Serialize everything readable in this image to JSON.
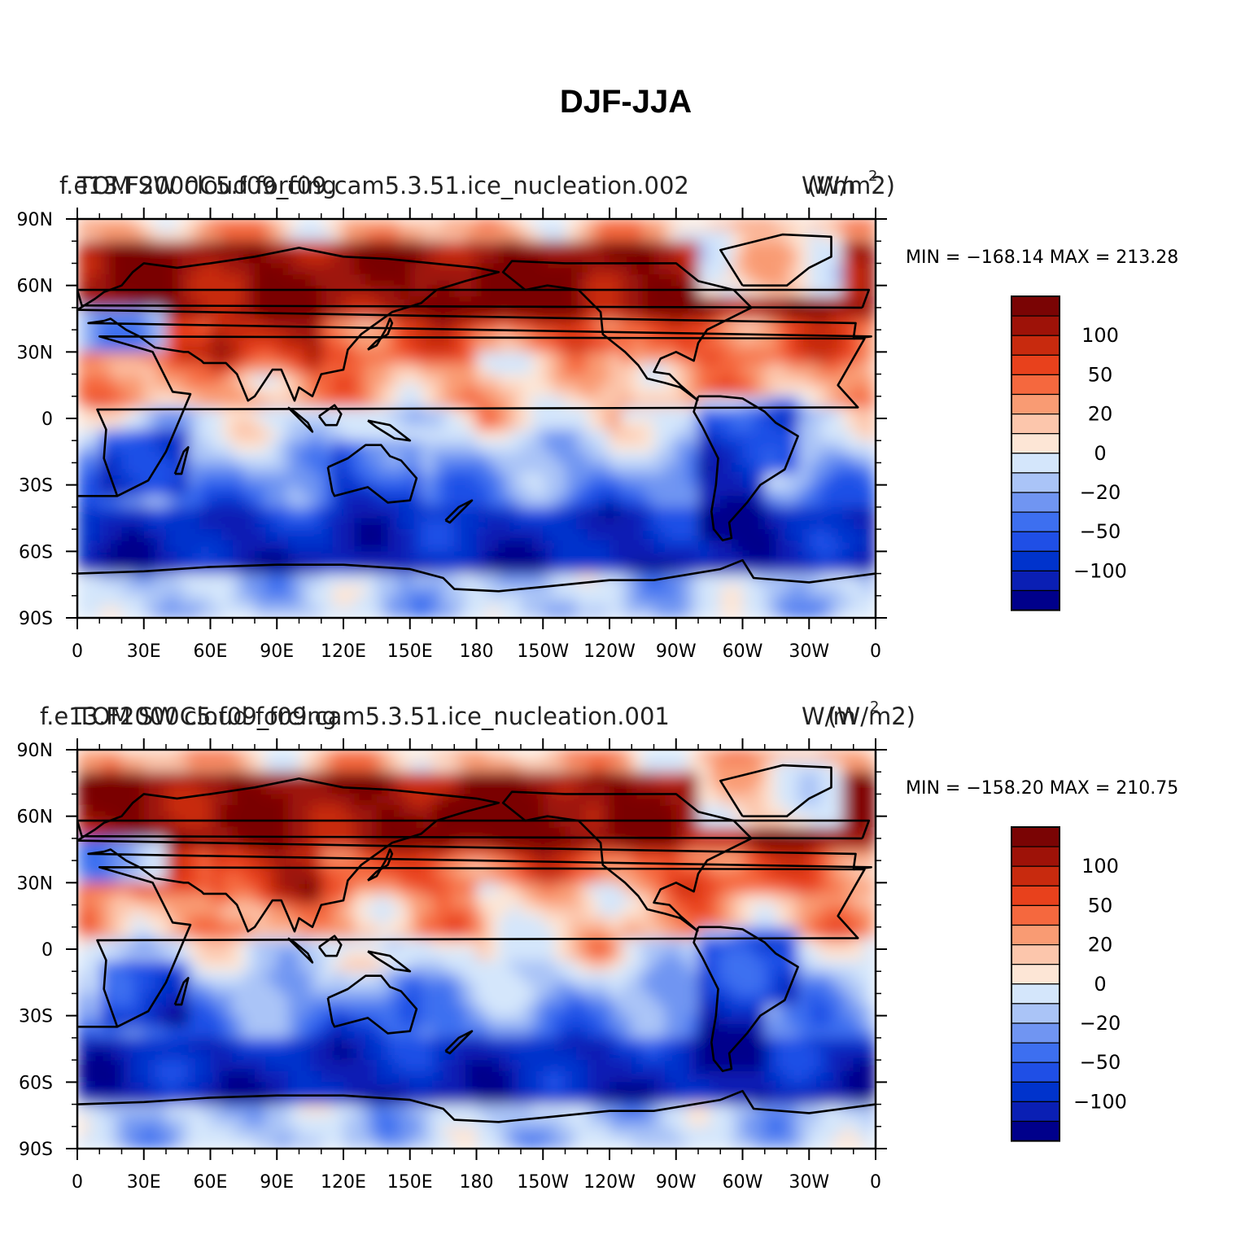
{
  "title": "DJF-JJA",
  "palette": [
    "#00008b",
    "#0a1fb4",
    "#0033cc",
    "#1f4fe6",
    "#3d6ff0",
    "#7095f2",
    "#aac4f7",
    "#d4e6fb",
    "#fde6d6",
    "#fcc6ac",
    "#f99b73",
    "#f5683e",
    "#e8411c",
    "#c82a0e",
    "#9e1208",
    "#7a0404"
  ],
  "x_ticks": [
    "0",
    "30E",
    "60E",
    "90E",
    "120E",
    "150E",
    "180",
    "150W",
    "120W",
    "90W",
    "60W",
    "30W",
    "0"
  ],
  "y_ticks": [
    "90N",
    "60N",
    "30N",
    "0",
    "30S",
    "60S",
    "90S"
  ],
  "colorbar_labels": [
    "100",
    "50",
    "20",
    "0",
    "−20",
    "−50",
    "−100"
  ],
  "panels": [
    {
      "subtitle_left": "f.e13.F2000C5.f09_f09.cam5.3.51.ice_nucleation.002",
      "subtitle_center": "TOM SW cloud forcing",
      "subtitle_right": "(W/m2)",
      "units_overlay": "W/m",
      "units_exp": "2",
      "minmax": "MIN = −168.14  MAX = 213.28"
    },
    {
      "subtitle_left": "f.e13.F2000C5.f09_f09.cam5.3.51.ice_nucleation.001",
      "subtitle_center": "TOM SW cloud forcing",
      "subtitle_right": "(W/m2)",
      "units_overlay": "W/m",
      "units_exp": "2",
      "minmax": "MIN = −158.20  MAX = 210.75"
    }
  ],
  "chart_data": {
    "type": "heatmap",
    "title": "DJF-JJA",
    "xlabel": "",
    "ylabel": "",
    "xlim": [
      0,
      360
    ],
    "ylim": [
      -90,
      90
    ],
    "x_ticks": [
      "0",
      "30E",
      "60E",
      "90E",
      "120E",
      "150E",
      "180",
      "150W",
      "120W",
      "90W",
      "60W",
      "30W",
      "0"
    ],
    "y_ticks": [
      "90N",
      "60N",
      "30N",
      "0",
      "30S",
      "60S",
      "90S"
    ],
    "contour_levels": [
      -150,
      -120,
      -100,
      -80,
      -65,
      -50,
      -35,
      -20,
      0,
      10,
      20,
      35,
      50,
      65,
      80,
      100,
      120
    ],
    "colorbar_tick_labels": [
      "100",
      "50",
      "20",
      "0",
      "−20",
      "−50",
      "−100"
    ],
    "panels": [
      {
        "name": "f.e13.F2000C5.f09_f09.cam5.3.51.ice_nucleation.002",
        "min": -168.14,
        "max": 213.28,
        "units": "W/m2"
      },
      {
        "name": "f.e13.F2000C5.f09_f09.cam5.3.51.ice_nucleation.001",
        "min": -158.2,
        "max": 210.75,
        "units": "W/m2"
      }
    ]
  }
}
